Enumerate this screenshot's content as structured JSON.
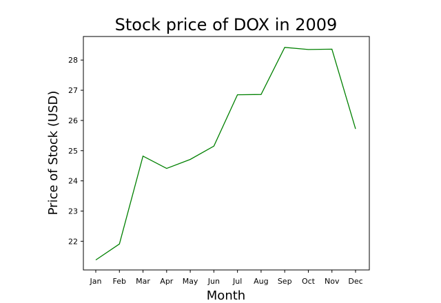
{
  "chart_data": {
    "type": "line",
    "title": "Stock price of DOX in 2009",
    "xlabel": "Month",
    "ylabel": "Price of Stock (USD)",
    "categories": [
      "Jan",
      "Feb",
      "Mar",
      "Apr",
      "May",
      "Jun",
      "Jul",
      "Aug",
      "Sep",
      "Oct",
      "Nov",
      "Dec"
    ],
    "series": [
      {
        "values": [
          21.38,
          21.91,
          24.82,
          24.41,
          24.71,
          25.15,
          26.85,
          26.86,
          28.42,
          28.35,
          28.36,
          25.72
        ],
        "color": "#008000"
      }
    ],
    "yticks": [
      22,
      23,
      24,
      25,
      26,
      27,
      28
    ],
    "ylim": [
      21.05,
      28.78
    ],
    "grid": false
  }
}
